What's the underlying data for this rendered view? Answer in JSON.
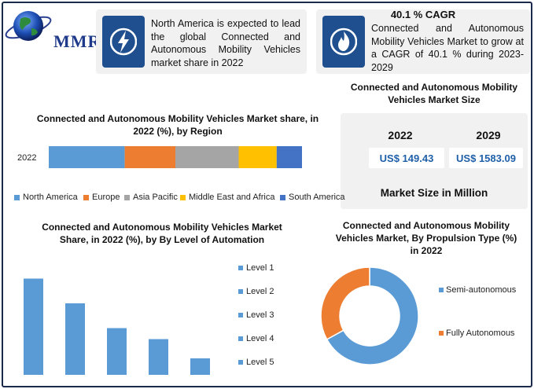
{
  "brand": {
    "name": "MMR"
  },
  "header": {
    "card1_text": "North America is expected to lead the global Connected and Autonomous Mobility Vehicles market share in 2022",
    "cagr_title": "40.1 % CAGR",
    "card2_text": "Connected and Autonomous Mobility Vehicles Market to grow at a CAGR of 40.1 % during 2023-2029"
  },
  "market_size": {
    "title": "Connected and Autonomous Mobility Vehicles Market Size",
    "year1": "2022",
    "year2": "2029",
    "value1": "US$ 149.43",
    "value2": "US$ 1583.09",
    "label": "Market Size in Million"
  },
  "colors": {
    "north_america": "#5b9bd5",
    "europe": "#ed7d31",
    "asia_pacific": "#a5a5a5",
    "middle_east_africa": "#ffc000",
    "south_america": "#4472c4",
    "icon_tile": "#1f4f8e"
  },
  "chart_data": [
    {
      "type": "bar",
      "orientation": "horizontal-stacked",
      "title": "Connected and Autonomous Mobility Vehicles Market share, in 2022 (%), by Region",
      "categories": [
        "2022"
      ],
      "series": [
        {
          "name": "North America",
          "values": [
            30
          ]
        },
        {
          "name": "Europe",
          "values": [
            20
          ]
        },
        {
          "name": "Asia Pacific",
          "values": [
            25
          ]
        },
        {
          "name": "Middle East and Africa",
          "values": [
            15
          ]
        },
        {
          "name": "South America",
          "values": [
            10
          ]
        }
      ],
      "legend": "bottom"
    },
    {
      "type": "bar",
      "title": "Connected and Autonomous Mobility Vehicles Market Share, in 2022 (%), by By Level of Automation",
      "categories": [
        "Level 1",
        "Level 2",
        "Level 3",
        "Level 4",
        "Level 5"
      ],
      "values": [
        35,
        26,
        17,
        13,
        6
      ],
      "ylim": [
        0,
        40
      ],
      "legend": "right"
    },
    {
      "type": "pie",
      "variant": "donut",
      "title": "Connected and Autonomous Mobility Vehicles Market, By Propulsion Type (%) in 2022",
      "categories": [
        "Semi-autonomous",
        "Fully Autonomous"
      ],
      "values": [
        67,
        33
      ],
      "colors": [
        "#5b9bd5",
        "#ed7d31"
      ],
      "legend": "right"
    }
  ]
}
